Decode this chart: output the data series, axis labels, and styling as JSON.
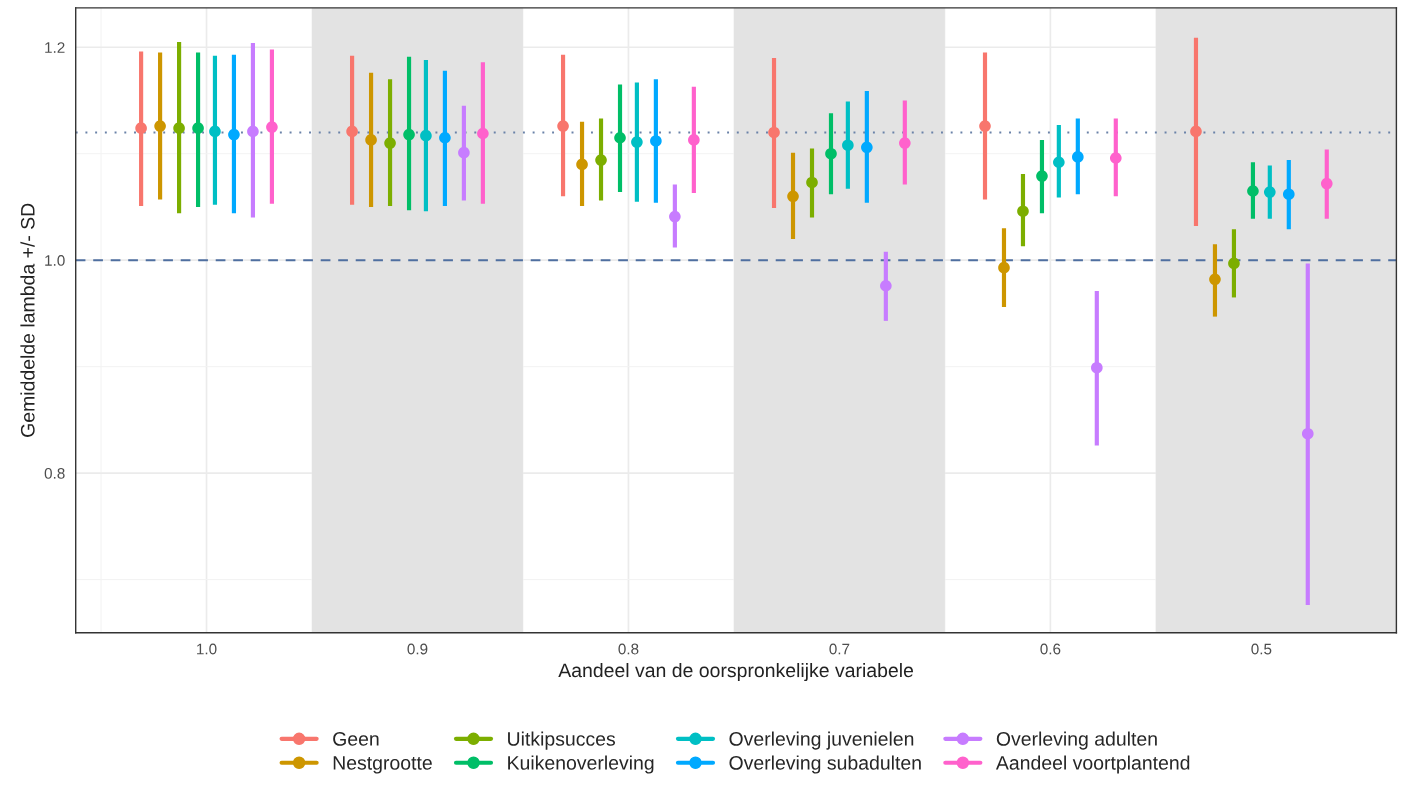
{
  "chart_data": {
    "type": "scatter",
    "xlabel": "Aandeel van de oorspronkelijke variabele",
    "ylabel": "Gemiddelde lambda +/- SD",
    "xlim": [
      1.062,
      0.436
    ],
    "ylim": [
      0.65,
      1.237
    ],
    "xticks": [
      {
        "value": 1.0,
        "label": "1.0"
      },
      {
        "value": 0.9,
        "label": "0.9"
      },
      {
        "value": 0.8,
        "label": "0.8"
      },
      {
        "value": 0.7,
        "label": "0.7"
      },
      {
        "value": 0.6,
        "label": "0.6"
      },
      {
        "value": 0.5,
        "label": "0.5"
      }
    ],
    "yticks": [
      {
        "value": 0.8,
        "label": "0.8"
      },
      {
        "value": 1.0,
        "label": "1.0"
      },
      {
        "value": 1.2,
        "label": "1.2"
      }
    ],
    "grid": true,
    "legend": "bottom",
    "marker": "circle",
    "bands": [
      {
        "axis": "x",
        "from": 0.95,
        "to": 0.85,
        "color": "#e3e3e3"
      },
      {
        "axis": "x",
        "from": 0.75,
        "to": 0.65,
        "color": "#e3e3e3"
      },
      {
        "axis": "x",
        "from": 0.55,
        "to": 0.436,
        "color": "#e3e3e3"
      }
    ],
    "ref_lines": [
      {
        "axis": "y",
        "value": 1.0,
        "color": "#4f6fa0",
        "line_style": "dashed"
      },
      {
        "axis": "y",
        "value": 1.12,
        "color": "#6a82a8",
        "line_style": "dotted"
      }
    ],
    "series": [
      {
        "name": "Geen",
        "color": "#f8766d",
        "x": [
          1.031,
          0.931,
          0.831,
          0.731,
          0.631,
          0.531
        ],
        "values": [
          1.124,
          1.121,
          1.126,
          1.12,
          1.126,
          1.121
        ],
        "errors": [
          [
            1.051,
            1.196
          ],
          [
            1.052,
            1.192
          ],
          [
            1.06,
            1.193
          ],
          [
            1.049,
            1.19
          ],
          [
            1.057,
            1.195
          ],
          [
            1.032,
            1.209
          ]
        ]
      },
      {
        "name": "Nestgrootte",
        "color": "#cd9600",
        "x": [
          1.022,
          0.922,
          0.822,
          0.722,
          0.622,
          0.522
        ],
        "values": [
          1.126,
          1.113,
          1.09,
          1.06,
          0.993,
          0.982
        ],
        "errors": [
          [
            1.057,
            1.195
          ],
          [
            1.05,
            1.176
          ],
          [
            1.051,
            1.13
          ],
          [
            1.02,
            1.101
          ],
          [
            0.956,
            1.03
          ],
          [
            0.947,
            1.015
          ]
        ]
      },
      {
        "name": "Uitkipsucces",
        "color": "#7cae00",
        "x": [
          1.013,
          0.913,
          0.813,
          0.713,
          0.613,
          0.513
        ],
        "values": [
          1.124,
          1.11,
          1.094,
          1.073,
          1.046,
          0.997
        ],
        "errors": [
          [
            1.044,
            1.205
          ],
          [
            1.051,
            1.17
          ],
          [
            1.056,
            1.133
          ],
          [
            1.04,
            1.105
          ],
          [
            1.013,
            1.081
          ],
          [
            0.965,
            1.029
          ]
        ]
      },
      {
        "name": "Kuikenoverleving",
        "color": "#00be67",
        "x": [
          1.004,
          0.904,
          0.804,
          0.704,
          0.604,
          0.504
        ],
        "values": [
          1.124,
          1.118,
          1.115,
          1.1,
          1.079,
          1.065
        ],
        "errors": [
          [
            1.05,
            1.195
          ],
          [
            1.047,
            1.191
          ],
          [
            1.064,
            1.165
          ],
          [
            1.062,
            1.138
          ],
          [
            1.044,
            1.113
          ],
          [
            1.039,
            1.092
          ]
        ]
      },
      {
        "name": "Overleving juvenielen",
        "color": "#00bfc4",
        "x": [
          0.996,
          0.896,
          0.796,
          0.696,
          0.596,
          0.496
        ],
        "values": [
          1.121,
          1.117,
          1.111,
          1.108,
          1.092,
          1.064
        ],
        "errors": [
          [
            1.052,
            1.192
          ],
          [
            1.046,
            1.188
          ],
          [
            1.055,
            1.167
          ],
          [
            1.067,
            1.149
          ],
          [
            1.059,
            1.127
          ],
          [
            1.039,
            1.089
          ]
        ]
      },
      {
        "name": "Overleving subadulten",
        "color": "#00a9ff",
        "x": [
          0.987,
          0.887,
          0.787,
          0.687,
          0.587,
          0.487
        ],
        "values": [
          1.118,
          1.115,
          1.112,
          1.106,
          1.097,
          1.062
        ],
        "errors": [
          [
            1.044,
            1.193
          ],
          [
            1.051,
            1.178
          ],
          [
            1.054,
            1.17
          ],
          [
            1.054,
            1.159
          ],
          [
            1.062,
            1.133
          ],
          [
            1.029,
            1.094
          ]
        ]
      },
      {
        "name": "Overleving adulten",
        "color": "#c77cff",
        "x": [
          0.978,
          0.878,
          0.778,
          0.678,
          0.578,
          0.478
        ],
        "values": [
          1.121,
          1.101,
          1.041,
          0.976,
          0.899,
          0.837
        ],
        "errors": [
          [
            1.04,
            1.204
          ],
          [
            1.056,
            1.145
          ],
          [
            1.012,
            1.071
          ],
          [
            0.943,
            1.008
          ],
          [
            0.826,
            0.971
          ],
          [
            0.676,
            0.997
          ]
        ]
      },
      {
        "name": "Aandeel voortplantend",
        "color": "#ff61cc",
        "x": [
          0.969,
          0.869,
          0.769,
          0.669,
          0.569,
          0.469
        ],
        "values": [
          1.125,
          1.119,
          1.113,
          1.11,
          1.096,
          1.072
        ],
        "errors": [
          [
            1.053,
            1.198
          ],
          [
            1.053,
            1.186
          ],
          [
            1.063,
            1.163
          ],
          [
            1.071,
            1.15
          ],
          [
            1.06,
            1.133
          ],
          [
            1.039,
            1.104
          ]
        ]
      }
    ]
  }
}
